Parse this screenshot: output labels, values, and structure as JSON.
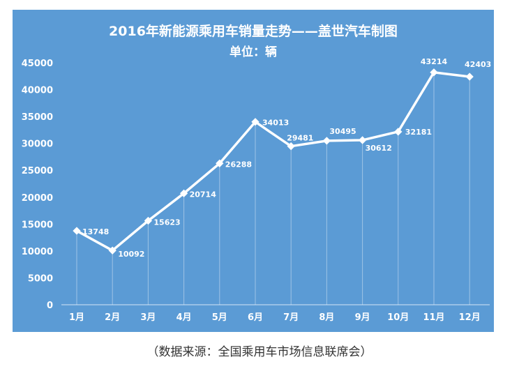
{
  "chart_data": {
    "type": "line",
    "title": "2016年新能源乘用车销量走势——盖世汽车制图",
    "subtitle": "单位：辆",
    "categories": [
      "1月",
      "2月",
      "3月",
      "4月",
      "5月",
      "6月",
      "7月",
      "8月",
      "9月",
      "10月",
      "11月",
      "12月"
    ],
    "series": [
      {
        "name": "销量",
        "values": [
          13748,
          10092,
          15623,
          20714,
          26288,
          34013,
          29481,
          30495,
          30612,
          32181,
          43214,
          42403
        ]
      }
    ],
    "y_ticks": [
      0,
      5000,
      10000,
      15000,
      20000,
      25000,
      30000,
      35000,
      40000,
      45000
    ],
    "ylim": [
      0,
      45000
    ],
    "xlabel": "",
    "ylabel": "",
    "grid": false,
    "legend": "none"
  },
  "colors": {
    "panel": "#5b9bd5",
    "line": "#ffffff",
    "drop_line": "#9ec3e6"
  },
  "caption": "（数据来源：全国乘用车市场信息联席会）"
}
